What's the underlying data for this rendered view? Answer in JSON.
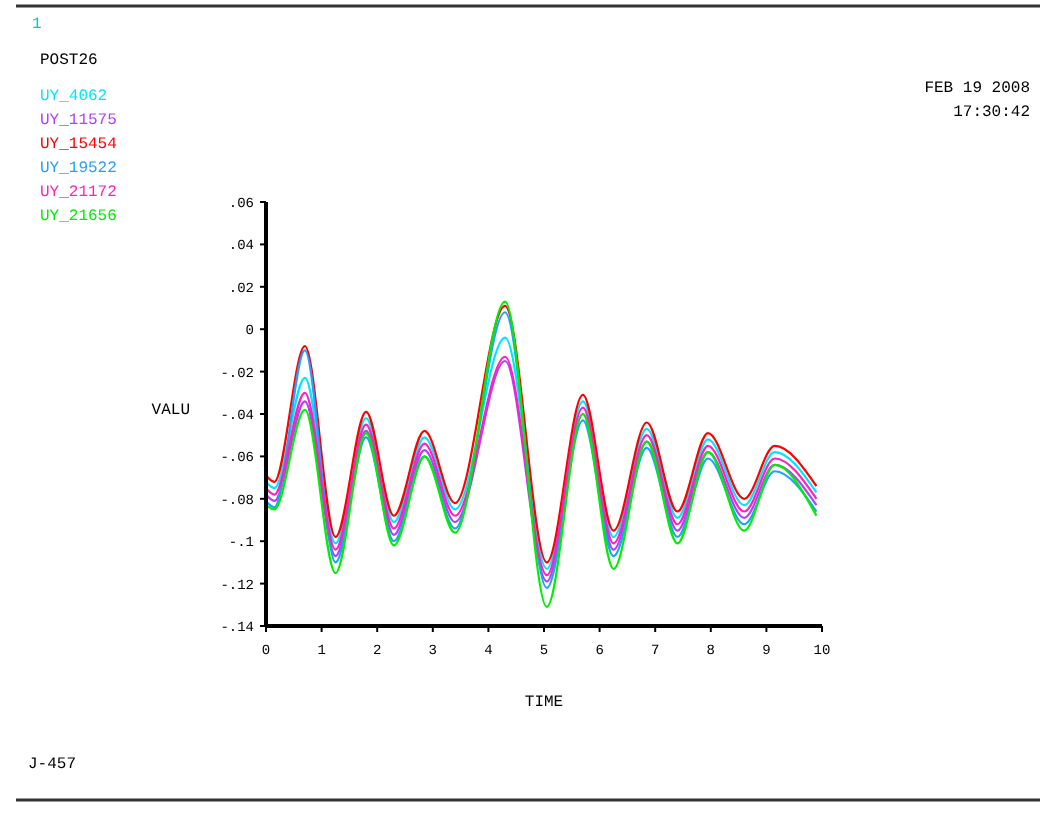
{
  "chart_data": {
    "type": "line",
    "xlabel": "TIME",
    "ylabel": "VALU",
    "annotations": [
      "1",
      "POST26",
      "FEB 19 2008",
      "17:30:42",
      "J-457"
    ],
    "x": [
      0,
      0.15,
      0.7,
      1.25,
      1.8,
      2.3,
      2.85,
      3.4,
      4.3,
      5.05,
      5.7,
      6.25,
      6.85,
      7.4,
      7.95,
      8.6,
      9.15,
      9.9
    ],
    "series": [
      {
        "name": "UY_4062",
        "color": "#00e5ff",
        "values": [
          -0.072,
          -0.075,
          -0.023,
          -0.101,
          -0.042,
          -0.091,
          -0.051,
          -0.085,
          -0.004,
          -0.113,
          -0.034,
          -0.098,
          -0.047,
          -0.089,
          -0.052,
          -0.083,
          -0.058,
          -0.077
        ]
      },
      {
        "name": "UY_11575",
        "color": "#b040ff",
        "values": [
          -0.078,
          -0.081,
          -0.034,
          -0.107,
          -0.048,
          -0.097,
          -0.057,
          -0.091,
          -0.015,
          -0.119,
          -0.04,
          -0.104,
          -0.053,
          -0.095,
          -0.058,
          -0.089,
          -0.064,
          -0.083
        ]
      },
      {
        "name": "UY_15454",
        "color": "#ff0000",
        "values": [
          -0.069,
          -0.072,
          -0.008,
          -0.098,
          -0.039,
          -0.088,
          -0.048,
          -0.082,
          0.011,
          -0.11,
          -0.031,
          -0.095,
          -0.044,
          -0.086,
          -0.049,
          -0.08,
          -0.055,
          -0.074
        ]
      },
      {
        "name": "UY_19522",
        "color": "#20a0ff",
        "values": [
          -0.081,
          -0.084,
          -0.01,
          -0.11,
          -0.051,
          -0.1,
          -0.06,
          -0.094,
          0.008,
          -0.122,
          -0.043,
          -0.107,
          -0.056,
          -0.098,
          -0.061,
          -0.092,
          -0.067,
          -0.086
        ]
      },
      {
        "name": "UY_21172",
        "color": "#ff20c0",
        "values": [
          -0.075,
          -0.078,
          -0.03,
          -0.104,
          -0.045,
          -0.094,
          -0.054,
          -0.088,
          -0.013,
          -0.116,
          -0.037,
          -0.101,
          -0.05,
          -0.092,
          -0.055,
          -0.086,
          -0.061,
          -0.08
        ]
      },
      {
        "name": "UY_21656",
        "color": "#00ee00",
        "values": [
          -0.083,
          -0.085,
          -0.038,
          -0.115,
          -0.049,
          -0.102,
          -0.06,
          -0.096,
          0.013,
          -0.131,
          -0.04,
          -0.113,
          -0.053,
          -0.101,
          -0.058,
          -0.095,
          -0.064,
          -0.088
        ]
      }
    ],
    "xlim": [
      0,
      10
    ],
    "xticks": [
      0,
      1,
      2,
      3,
      4,
      5,
      6,
      7,
      8,
      9,
      10
    ],
    "ylim": [
      -0.14,
      0.06
    ],
    "yticks": [
      {
        "value": -0.14,
        "label": "-.14"
      },
      {
        "value": -0.12,
        "label": "-.12"
      },
      {
        "value": -0.1,
        "label": "-.1"
      },
      {
        "value": -0.08,
        "label": "-.08"
      },
      {
        "value": -0.06,
        "label": "-.06"
      },
      {
        "value": -0.04,
        "label": "-.04"
      },
      {
        "value": -0.02,
        "label": "-.02"
      },
      0,
      {
        "value": 0.02,
        "label": ".02"
      },
      {
        "value": 0.04,
        "label": ".04"
      },
      {
        "value": 0.06,
        "label": ".06"
      }
    ],
    "legend": "top left",
    "grid": false
  }
}
